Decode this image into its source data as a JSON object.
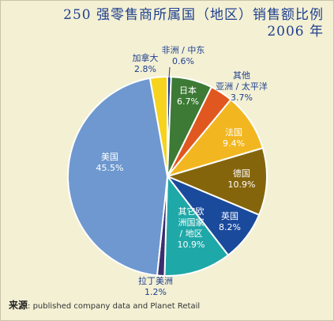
{
  "title": {
    "line1": "250 强零售商所属国（地区）销售额比例",
    "line2": "2006 年"
  },
  "source": {
    "label": "来源",
    "text": ": published company data and Planet Retail"
  },
  "colors": {
    "background": "#f3f0d4",
    "title": "#1f3f8f"
  },
  "chart_data": {
    "type": "pie",
    "title": "250 强零售商所属国（地区）销售额比例 2006 年",
    "unit": "%",
    "slices": [
      {
        "label": [
          "非洲 / 中东"
        ],
        "value_text": "0.6%",
        "value": 0.6,
        "color": "#1d3b8c",
        "text_color": "#1f3f8f"
      },
      {
        "label": [
          "日本"
        ],
        "value_text": "6.7%",
        "value": 6.7,
        "color": "#3d7a35",
        "text_color": "#ffffff"
      },
      {
        "label": [
          "其他",
          "亚洲 / 太平洋"
        ],
        "value_text": "3.7%",
        "value": 3.7,
        "color": "#e0581f",
        "text_color": "#1f3f8f"
      },
      {
        "label": [
          "法国"
        ],
        "value_text": "9.4%",
        "value": 9.4,
        "color": "#f2b720",
        "text_color": "#ffffff"
      },
      {
        "label": [
          "德国"
        ],
        "value_text": "10.9%",
        "value": 10.9,
        "color": "#85650c",
        "text_color": "#ffffff"
      },
      {
        "label": [
          "英国"
        ],
        "value_text": "8.2%",
        "value": 8.2,
        "color": "#1a4a9c",
        "text_color": "#ffffff"
      },
      {
        "label": [
          "其它欧",
          "洲国家",
          "/ 地区"
        ],
        "value_text": "10.9%",
        "value": 10.9,
        "color": "#1fa8a8",
        "text_color": "#ffffff"
      },
      {
        "label": [
          "拉丁美洲"
        ],
        "value_text": "1.2%",
        "value": 1.2,
        "color": "#3a2f6e",
        "text_color": "#1f3f8f"
      },
      {
        "label": [
          "美国"
        ],
        "value_text": "45.5%",
        "value": 45.5,
        "color": "#6e98cf",
        "text_color": "#ffffff"
      },
      {
        "label": [
          "加拿大"
        ],
        "value_text": "2.8%",
        "value": 2.8,
        "color": "#f5d31e",
        "text_color": "#1f3f8f"
      }
    ]
  }
}
